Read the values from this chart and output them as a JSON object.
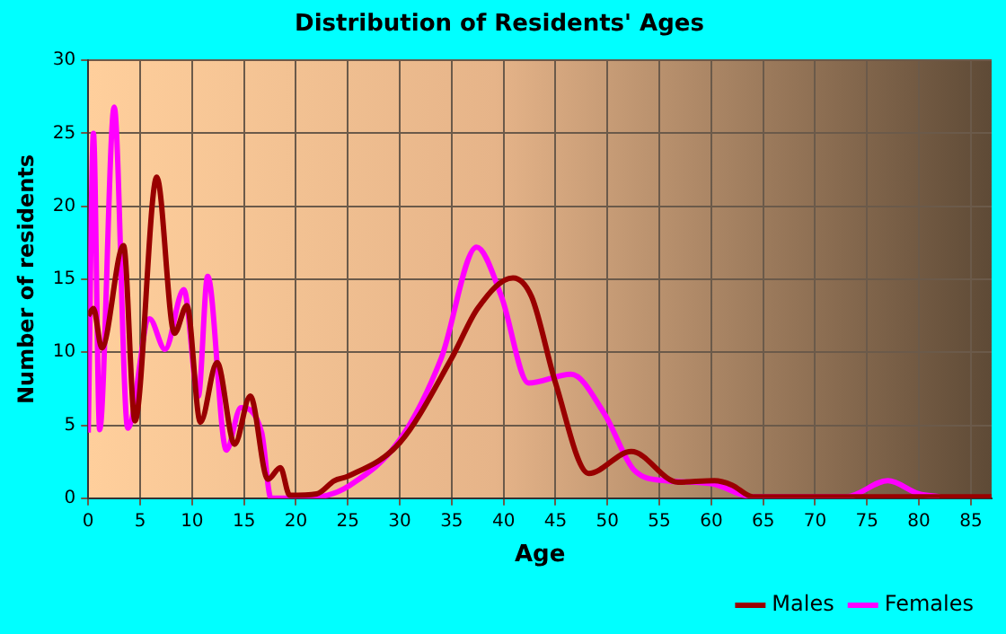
{
  "chart_data": {
    "type": "line",
    "title": "Distribution of Residents' Ages",
    "xlabel": "Age",
    "ylabel": "Number of residents",
    "xlim": [
      0,
      87
    ],
    "xticks": [
      0,
      5,
      10,
      15,
      20,
      25,
      30,
      35,
      40,
      45,
      50,
      55,
      60,
      65,
      70,
      75,
      80,
      85
    ],
    "ylim": [
      0,
      30
    ],
    "yticks": [
      0,
      5,
      10,
      15,
      20,
      25,
      30
    ],
    "grid": true,
    "legend": "bottom right",
    "marker": "none",
    "series": [
      {
        "name": "Males",
        "color": "#990000",
        "x": [
          0,
          0.5,
          1.3,
          3.4,
          4.5,
          6.6,
          8.3,
          9.5,
          10.8,
          12.4,
          14.1,
          15.6,
          17.3,
          18.5,
          19.4,
          22,
          23.7,
          25,
          30,
          35,
          37.5,
          40.9,
          42.7,
          45,
          48.2,
          52.3,
          56.8,
          60.3,
          62,
          64,
          70,
          80,
          87
        ],
        "values": [
          12.5,
          13,
          10.3,
          17.3,
          5.3,
          22,
          11.3,
          13.2,
          5.2,
          9.3,
          3.7,
          7,
          1.3,
          2.1,
          0.2,
          0.3,
          1.2,
          1.5,
          3.8,
          9.6,
          13,
          15.1,
          13.8,
          7.9,
          1.7,
          3.2,
          1.1,
          1.2,
          0.9,
          0.1,
          0.1,
          0.1,
          0.1
        ]
      },
      {
        "name": "Females",
        "color": "#ff00ff",
        "x": [
          0,
          0.5,
          1.1,
          2.5,
          3.8,
          5.9,
          7.4,
          9.2,
          10.6,
          11.5,
          13.3,
          14.7,
          16.7,
          17.6,
          19.6,
          23,
          25,
          30,
          34,
          37.4,
          39.8,
          42.4,
          46.5,
          49.7,
          52.6,
          55.6,
          60,
          64,
          73,
          77,
          80,
          82
        ],
        "values": [
          4.5,
          25,
          4.7,
          26.8,
          4.8,
          12.3,
          10.2,
          14.3,
          7,
          15.2,
          3.3,
          6.2,
          4.5,
          0,
          0,
          0.2,
          0.8,
          4,
          9.6,
          17.2,
          13.8,
          7.9,
          8.5,
          5.8,
          1.9,
          1.2,
          1,
          0.1,
          0.1,
          1.2,
          0.3,
          0.1
        ]
      }
    ]
  }
}
